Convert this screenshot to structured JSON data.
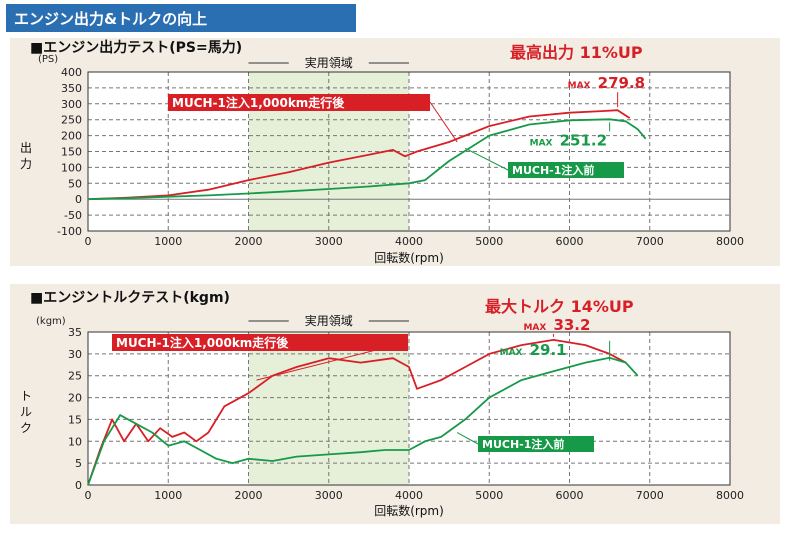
{
  "header": {
    "title": "エンジン出力&トルクの向上"
  },
  "colors": {
    "header_bg": "#2b6fb3",
    "panel_bg": "#f2ece3",
    "band": "#e6efd8",
    "red": "#d81f26",
    "green": "#169a48",
    "grid": "#777777"
  },
  "chart_data": [
    {
      "type": "line",
      "title": "■エンジン出力テスト(PS=馬力)",
      "headline": "最高出力 11%UP",
      "ylabel": "出力",
      "yunit": "(PS)",
      "xlabel": "回転数(rpm)",
      "band_label": "実用領域",
      "band": [
        2000,
        4000
      ],
      "xlim": [
        0,
        8000
      ],
      "ylim": [
        -100,
        400
      ],
      "xticks": [
        0,
        1000,
        2000,
        3000,
        4000,
        5000,
        6000,
        7000,
        8000
      ],
      "yticks": [
        -100,
        -50,
        0,
        50,
        100,
        150,
        200,
        250,
        300,
        350,
        400
      ],
      "grid": true,
      "series": [
        {
          "name": "MUCH-1注入1,000km走行後",
          "color": "#d81f26",
          "x": [
            0,
            500,
            1000,
            1500,
            2000,
            2500,
            3000,
            3500,
            3800,
            3950,
            4100,
            4500,
            5000,
            5500,
            6000,
            6400,
            6600,
            6750
          ],
          "y": [
            0,
            5,
            12,
            30,
            60,
            85,
            115,
            140,
            155,
            135,
            150,
            180,
            230,
            260,
            272,
            277,
            279.8,
            255
          ]
        },
        {
          "name": "MUCH-1注入前",
          "color": "#169a48",
          "x": [
            0,
            500,
            1000,
            1500,
            2000,
            2500,
            3000,
            3500,
            4000,
            4200,
            4500,
            5000,
            5500,
            6000,
            6500,
            6700,
            6850,
            6950
          ],
          "y": [
            0,
            3,
            8,
            12,
            18,
            25,
            32,
            40,
            50,
            60,
            120,
            200,
            235,
            248,
            251.2,
            245,
            220,
            190
          ]
        }
      ],
      "annotations": [
        {
          "text": "MAX 279.8",
          "prefix": "MAX",
          "value": "279.8",
          "color": "#d81f26"
        },
        {
          "text": "MAX 251.2",
          "prefix": "MAX",
          "value": "251.2",
          "color": "#169a48"
        }
      ]
    },
    {
      "type": "line",
      "title": "■エンジントルクテスト(kgm)",
      "headline": "最大トルク 14%UP",
      "ylabel": "トルク",
      "yunit": "(kgm)",
      "xlabel": "回転数(rpm)",
      "band_label": "実用領域",
      "band": [
        2000,
        4000
      ],
      "xlim": [
        0,
        8000
      ],
      "ylim": [
        0,
        35
      ],
      "xticks": [
        0,
        1000,
        2000,
        3000,
        4000,
        5000,
        6000,
        7000,
        8000
      ],
      "yticks": [
        0,
        5,
        10,
        15,
        20,
        25,
        30,
        35
      ],
      "grid": true,
      "series": [
        {
          "name": "MUCH-1注入1,000km走行後",
          "color": "#d81f26",
          "x": [
            0,
            150,
            300,
            450,
            600,
            750,
            900,
            1050,
            1200,
            1350,
            1500,
            1700,
            2000,
            2300,
            2600,
            3000,
            3400,
            3800,
            4000,
            4100,
            4400,
            4700,
            5000,
            5400,
            5800,
            6200,
            6500,
            6700
          ],
          "y": [
            0,
            8,
            15,
            10,
            14,
            10,
            13,
            11,
            12,
            10,
            12,
            18,
            21,
            25,
            27,
            29,
            28,
            29,
            27,
            22,
            24,
            27,
            30,
            32,
            33.2,
            32,
            30,
            28
          ]
        },
        {
          "name": "MUCH-1注入前",
          "color": "#169a48",
          "x": [
            0,
            200,
            400,
            600,
            800,
            1000,
            1200,
            1400,
            1600,
            1800,
            2000,
            2300,
            2600,
            3000,
            3400,
            3700,
            4000,
            4200,
            4400,
            4700,
            5000,
            5400,
            5800,
            6200,
            6500,
            6700,
            6850
          ],
          "y": [
            0,
            10,
            16,
            14,
            12,
            9,
            10,
            8,
            6,
            5,
            6,
            5.5,
            6.5,
            7,
            7.5,
            8,
            8,
            10,
            11,
            15,
            20,
            24,
            26,
            28,
            29.1,
            28,
            25
          ]
        }
      ],
      "annotations": [
        {
          "text": "MAX 33.2",
          "prefix": "MAX",
          "value": "33.2",
          "color": "#d81f26"
        },
        {
          "text": "MAX 29.1",
          "prefix": "MAX",
          "value": "29.1",
          "color": "#169a48"
        }
      ]
    }
  ]
}
